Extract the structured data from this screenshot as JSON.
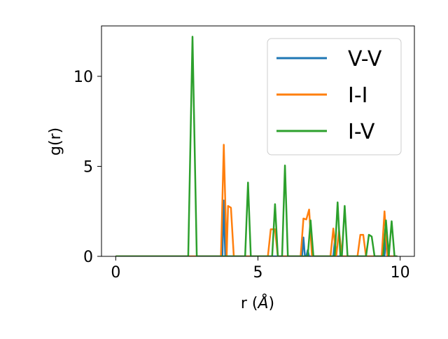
{
  "chart_data": {
    "type": "line",
    "title": "",
    "xlabel": "r (",
    "xlabel_symbol": "Å",
    "xlabel_close": ")",
    "ylabel": "g(r)",
    "xlim": [
      -0.5,
      10.5
    ],
    "ylim": [
      0,
      12.8
    ],
    "xticks": [
      0,
      5,
      10
    ],
    "xtick_labels": [
      "0",
      "5",
      "10"
    ],
    "yticks": [
      0,
      5,
      10
    ],
    "ytick_labels": [
      "0",
      "5",
      "10"
    ],
    "grid": false,
    "legend": "top-right",
    "series": [
      {
        "name": "V-V",
        "color": "#1f77b4",
        "x": [
          0,
          3.7,
          3.75,
          3.8,
          3.85,
          6.5,
          6.55,
          6.6,
          6.65,
          6.7,
          6.75,
          6.8,
          6.85,
          7.6,
          7.65,
          7.7,
          7.75,
          9.4,
          9.45,
          9.5,
          9.55,
          9.6,
          9.9
        ],
        "values": [
          0,
          0,
          0,
          3.1,
          0,
          0,
          0,
          1.05,
          0,
          0,
          0.35,
          0,
          0,
          0,
          0,
          0.85,
          0,
          0,
          0,
          1.0,
          0,
          0,
          0
        ]
      },
      {
        "name": "I-I",
        "color": "#ff7f0e",
        "x": [
          0,
          3.7,
          3.8,
          3.9,
          3.95,
          4.05,
          4.15,
          4.25,
          5.35,
          5.45,
          5.6,
          5.7,
          6.5,
          6.6,
          6.7,
          6.8,
          6.9,
          7.55,
          7.65,
          7.75,
          7.85,
          7.95,
          8.5,
          8.6,
          8.7,
          8.8,
          9.35,
          9.45,
          9.55,
          9.65,
          9.9
        ],
        "values": [
          0,
          0,
          6.2,
          0,
          2.8,
          2.7,
          0,
          0,
          0,
          1.5,
          1.5,
          0,
          0,
          2.1,
          2.05,
          2.6,
          0,
          0,
          1.55,
          0,
          1.45,
          0,
          0,
          1.2,
          1.2,
          0,
          0,
          2.5,
          0,
          0,
          0
        ]
      },
      {
        "name": "I-V",
        "color": "#2ca02c",
        "x": [
          0,
          2.55,
          2.7,
          2.85,
          4.55,
          4.65,
          4.75,
          5.5,
          5.6,
          5.7,
          5.85,
          5.95,
          6.05,
          6.75,
          6.85,
          6.95,
          7.7,
          7.8,
          7.9,
          7.95,
          8.05,
          8.15,
          8.8,
          8.9,
          9.0,
          9.1,
          9.4,
          9.5,
          9.6,
          9.7,
          9.8,
          9.9
        ],
        "values": [
          0,
          0,
          12.2,
          0,
          0,
          4.1,
          0,
          0,
          2.9,
          0,
          0,
          5.05,
          0,
          0,
          2.0,
          0,
          0,
          3.0,
          0,
          0,
          2.8,
          0,
          0,
          1.2,
          1.1,
          0,
          0,
          2.0,
          0,
          1.95,
          0,
          0
        ]
      }
    ]
  }
}
